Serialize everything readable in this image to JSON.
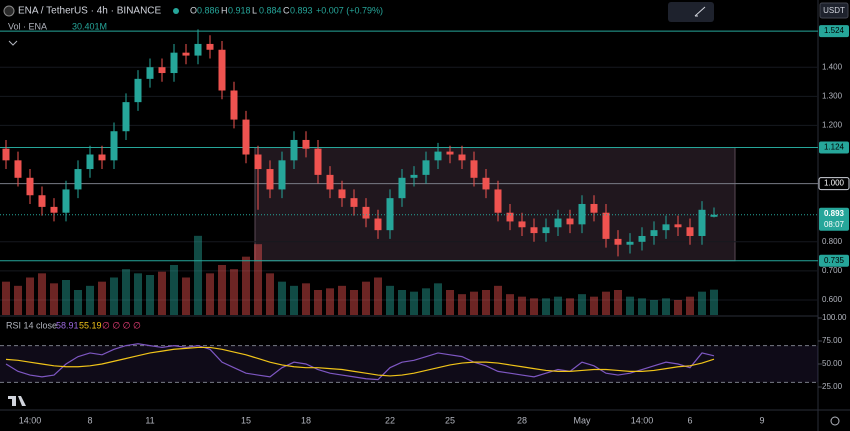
{
  "chart_data": {
    "type": "candlestick",
    "symbol": "ENA / TetherUS · 4h · BINANCE",
    "ohlc_keys": [
      "O",
      "H",
      "L",
      "C"
    ],
    "change": "+0.007 (+0.79%)",
    "volume_title": "Vol · ENA",
    "volume_last_label": "30.401M",
    "currency": "USDT",
    "countdown": "08:07",
    "rsi_title": "RSI 14 close",
    "rsi_extra": "∅ ∅ ∅ ∅",
    "up_color": "#26a69a",
    "down_color": "#ef5350",
    "categories": [
      null,
      null,
      "14:00",
      null,
      null,
      null,
      null,
      "8",
      null,
      null,
      null,
      null,
      "11",
      null,
      null,
      null,
      null,
      null,
      null,
      null,
      "15",
      null,
      null,
      null,
      null,
      "18",
      null,
      null,
      null,
      null,
      null,
      null,
      "22",
      null,
      null,
      null,
      null,
      "25",
      null,
      null,
      null,
      null,
      null,
      "28",
      null,
      null,
      null,
      null,
      "May",
      null,
      null,
      null,
      null,
      "14:00",
      null,
      null,
      null,
      "6",
      null,
      null,
      null,
      null,
      null,
      "9"
    ],
    "open": [
      1.12,
      1.08,
      1.02,
      0.96,
      0.92,
      0.9,
      0.98,
      1.05,
      1.1,
      1.08,
      1.18,
      1.28,
      1.36,
      1.4,
      1.38,
      1.45,
      1.44,
      1.48,
      1.46,
      1.32,
      1.22,
      1.1,
      1.05,
      0.98,
      1.08,
      1.15,
      1.12,
      1.03,
      0.98,
      0.95,
      0.92,
      0.88,
      0.84,
      0.95,
      1.02,
      1.03,
      1.08,
      1.11,
      1.1,
      1.08,
      1.02,
      0.98,
      0.9,
      0.87,
      0.85,
      0.83,
      0.85,
      0.88,
      0.86,
      0.93,
      0.9,
      0.81,
      0.79,
      0.8,
      0.82,
      0.84,
      0.86,
      0.85,
      0.82,
      0.886,
      null,
      null,
      null,
      null
    ],
    "high": [
      1.15,
      1.11,
      1.05,
      0.99,
      0.95,
      1.01,
      1.08,
      1.13,
      1.13,
      1.21,
      1.31,
      1.39,
      1.43,
      1.43,
      1.48,
      1.48,
      1.53,
      1.51,
      1.49,
      1.35,
      1.25,
      1.13,
      1.08,
      1.11,
      1.18,
      1.18,
      1.15,
      1.06,
      1.01,
      0.98,
      0.95,
      0.91,
      0.98,
      1.05,
      1.06,
      1.11,
      1.14,
      1.13,
      1.13,
      1.11,
      1.05,
      1.01,
      0.93,
      0.9,
      0.88,
      0.88,
      0.91,
      0.91,
      0.96,
      0.96,
      0.93,
      0.84,
      0.83,
      0.85,
      0.87,
      0.89,
      0.89,
      0.88,
      0.94,
      0.918,
      null,
      null,
      null,
      null
    ],
    "low": [
      1.05,
      0.99,
      0.93,
      0.89,
      0.87,
      0.87,
      0.95,
      1.02,
      1.05,
      1.05,
      1.15,
      1.25,
      1.33,
      1.35,
      1.35,
      1.41,
      1.41,
      1.43,
      1.29,
      1.19,
      1.07,
      0.91,
      0.95,
      0.95,
      1.05,
      1.09,
      1.0,
      0.95,
      0.92,
      0.89,
      0.85,
      0.81,
      0.81,
      0.92,
      0.99,
      1.0,
      1.05,
      1.07,
      1.05,
      0.99,
      0.95,
      0.87,
      0.84,
      0.82,
      0.8,
      0.8,
      0.82,
      0.83,
      0.83,
      0.87,
      0.78,
      0.75,
      0.76,
      0.77,
      0.79,
      0.81,
      0.82,
      0.79,
      0.79,
      0.884,
      null,
      null,
      null,
      null
    ],
    "close": [
      1.08,
      1.02,
      0.96,
      0.92,
      0.9,
      0.98,
      1.05,
      1.1,
      1.08,
      1.18,
      1.28,
      1.36,
      1.4,
      1.38,
      1.45,
      1.44,
      1.48,
      1.46,
      1.32,
      1.22,
      1.1,
      1.05,
      0.98,
      1.08,
      1.15,
      1.12,
      1.03,
      0.98,
      0.95,
      0.92,
      0.88,
      0.84,
      0.95,
      1.02,
      1.03,
      1.08,
      1.11,
      1.1,
      1.08,
      1.02,
      0.98,
      0.9,
      0.87,
      0.85,
      0.83,
      0.85,
      0.88,
      0.86,
      0.93,
      0.9,
      0.81,
      0.79,
      0.8,
      0.82,
      0.84,
      0.86,
      0.85,
      0.82,
      0.91,
      0.893,
      null,
      null,
      null,
      null
    ],
    "volume": [
      40,
      35,
      45,
      50,
      38,
      42,
      30,
      35,
      40,
      45,
      55,
      50,
      48,
      52,
      60,
      45,
      95,
      50,
      60,
      55,
      70,
      85,
      50,
      40,
      35,
      38,
      30,
      32,
      35,
      30,
      40,
      45,
      35,
      30,
      28,
      32,
      38,
      30,
      25,
      28,
      30,
      35,
      25,
      22,
      20,
      20,
      22,
      20,
      25,
      22,
      28,
      30,
      22,
      20,
      18,
      20,
      18,
      22,
      28,
      30.401,
      null,
      null,
      null,
      null
    ],
    "vlim": [
      0,
      120
    ],
    "rsi": [
      50,
      42,
      38,
      36,
      38,
      50,
      58,
      62,
      60,
      66,
      70,
      72,
      70,
      68,
      70,
      68,
      70,
      66,
      52,
      46,
      40,
      38,
      36,
      46,
      52,
      50,
      44,
      40,
      38,
      36,
      34,
      33,
      46,
      52,
      54,
      58,
      62,
      60,
      58,
      52,
      48,
      42,
      40,
      38,
      36,
      40,
      44,
      42,
      52,
      48,
      40,
      38,
      40,
      44,
      48,
      52,
      50,
      46,
      62,
      58.91,
      null,
      null,
      null,
      null
    ],
    "rsi_ma": [
      55,
      54,
      52,
      50,
      48,
      47,
      47,
      48,
      50,
      53,
      56,
      59,
      62,
      64,
      66,
      67,
      68,
      68,
      66,
      63,
      60,
      56,
      52,
      49,
      47,
      46,
      46,
      45,
      44,
      42,
      40,
      38,
      37,
      38,
      40,
      43,
      46,
      49,
      51,
      52,
      52,
      51,
      49,
      47,
      45,
      43,
      42,
      42,
      43,
      44,
      44,
      43,
      42,
      42,
      43,
      45,
      47,
      48,
      51,
      55.19,
      null,
      null,
      null,
      null
    ],
    "rsi_levels": [
      30,
      70
    ],
    "rsi_lim": [
      0,
      100
    ],
    "rsi_ticks": [
      {
        "value": 100,
        "label": "100.00"
      },
      {
        "value": 75,
        "label": "75.00"
      },
      {
        "value": 50,
        "label": "50.00"
      },
      {
        "value": 25,
        "label": "25.00"
      }
    ],
    "ylim": [
      0.6,
      1.631
    ],
    "yticks": [
      {
        "value": 1.4,
        "label": "1.400"
      },
      {
        "value": 1.3,
        "label": "1.300"
      },
      {
        "value": 1.2,
        "label": "1.200"
      },
      {
        "value": 0.8,
        "label": "0.800"
      },
      {
        "value": 0.7,
        "label": "0.700"
      },
      {
        "value": 0.6,
        "label": "0.600"
      }
    ],
    "levels": [
      1.524,
      1.124,
      {
        "value": 1.0,
        "label": "1.000"
      },
      0.735
    ],
    "grid": true
  }
}
